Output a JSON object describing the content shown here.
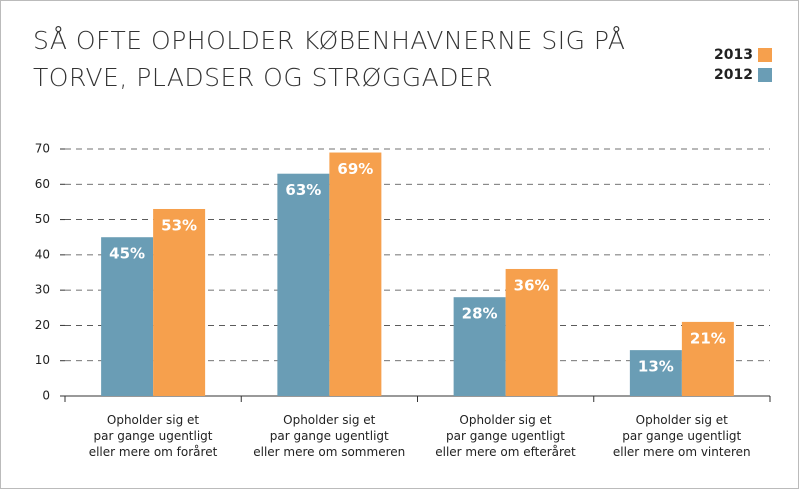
{
  "chart_data": {
    "type": "bar",
    "title": "SÅ OFTE OPHOLDER KØBENHAVNERNE SIG PÅ\nTORVE, PLADSER OG STRØGGADER",
    "categories": [
      "Opholder sig et\npar gange ugentligt\neller mere om foråret",
      "Opholder sig et\npar gange ugentligt\neller mere om sommeren",
      "Opholder sig et\npar gange ugentligt\neller mere om efteråret",
      "Opholder sig et\npar gange ugentligt\neller mere om vinteren"
    ],
    "series": [
      {
        "name": "2012",
        "color": "#6a9db5",
        "values": [
          45,
          63,
          28,
          13
        ],
        "value_labels": [
          "45%",
          "63%",
          "28%",
          "13%"
        ]
      },
      {
        "name": "2013",
        "color": "#f6a04d",
        "values": [
          53,
          69,
          36,
          21
        ],
        "value_labels": [
          "53%",
          "69%",
          "36%",
          "21%"
        ]
      }
    ],
    "ylim": [
      0,
      70
    ],
    "yticks": [
      0,
      10,
      20,
      30,
      40,
      50,
      60,
      70
    ],
    "grid": true
  }
}
